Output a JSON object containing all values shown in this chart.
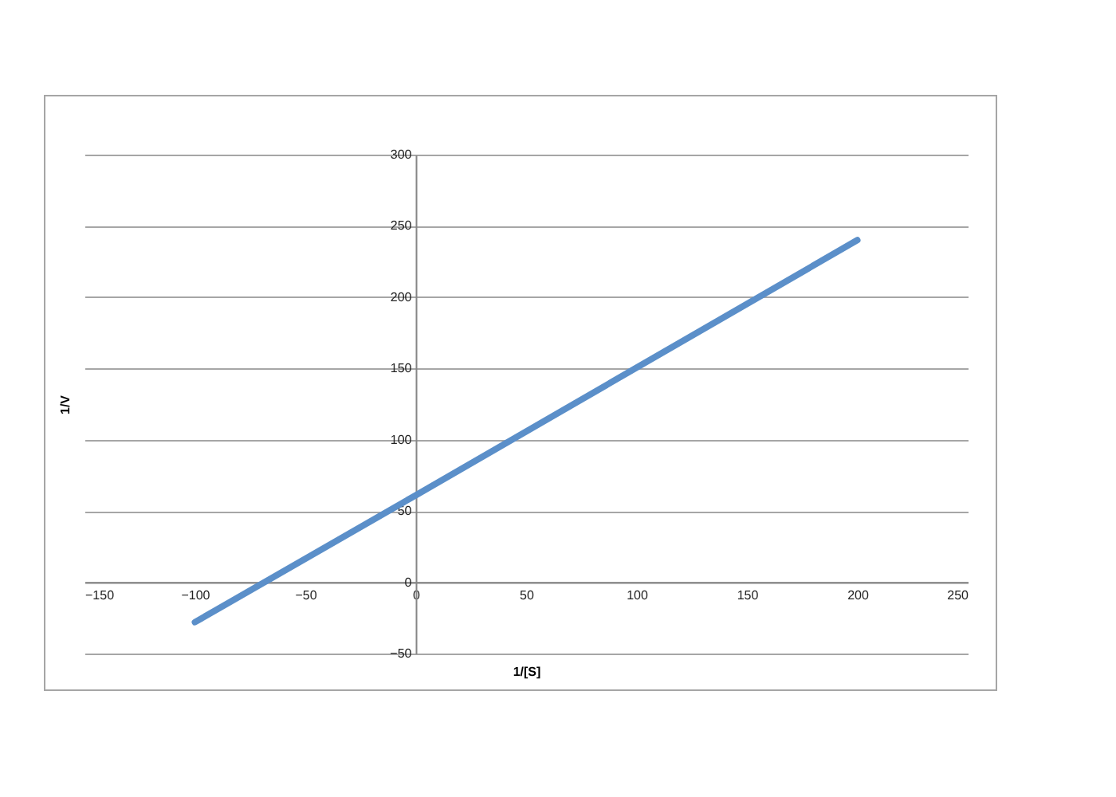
{
  "chart_data": {
    "type": "line",
    "xlabel": "1/[S]",
    "ylabel": "1/V",
    "x": [
      -100,
      0,
      200
    ],
    "series": [
      {
        "color": "#5b8fc9",
        "values": [
          -28,
          61,
          240
        ]
      }
    ],
    "xlim": [
      -150,
      250
    ],
    "xticks": [
      -150,
      -100,
      -50,
      0,
      50,
      100,
      150,
      200,
      250
    ],
    "ylim": [
      -50,
      300
    ],
    "yticks": [
      -50,
      0,
      50,
      100,
      150,
      200,
      250,
      300
    ],
    "grid": "y",
    "marker": "none",
    "line_style": "solid"
  }
}
